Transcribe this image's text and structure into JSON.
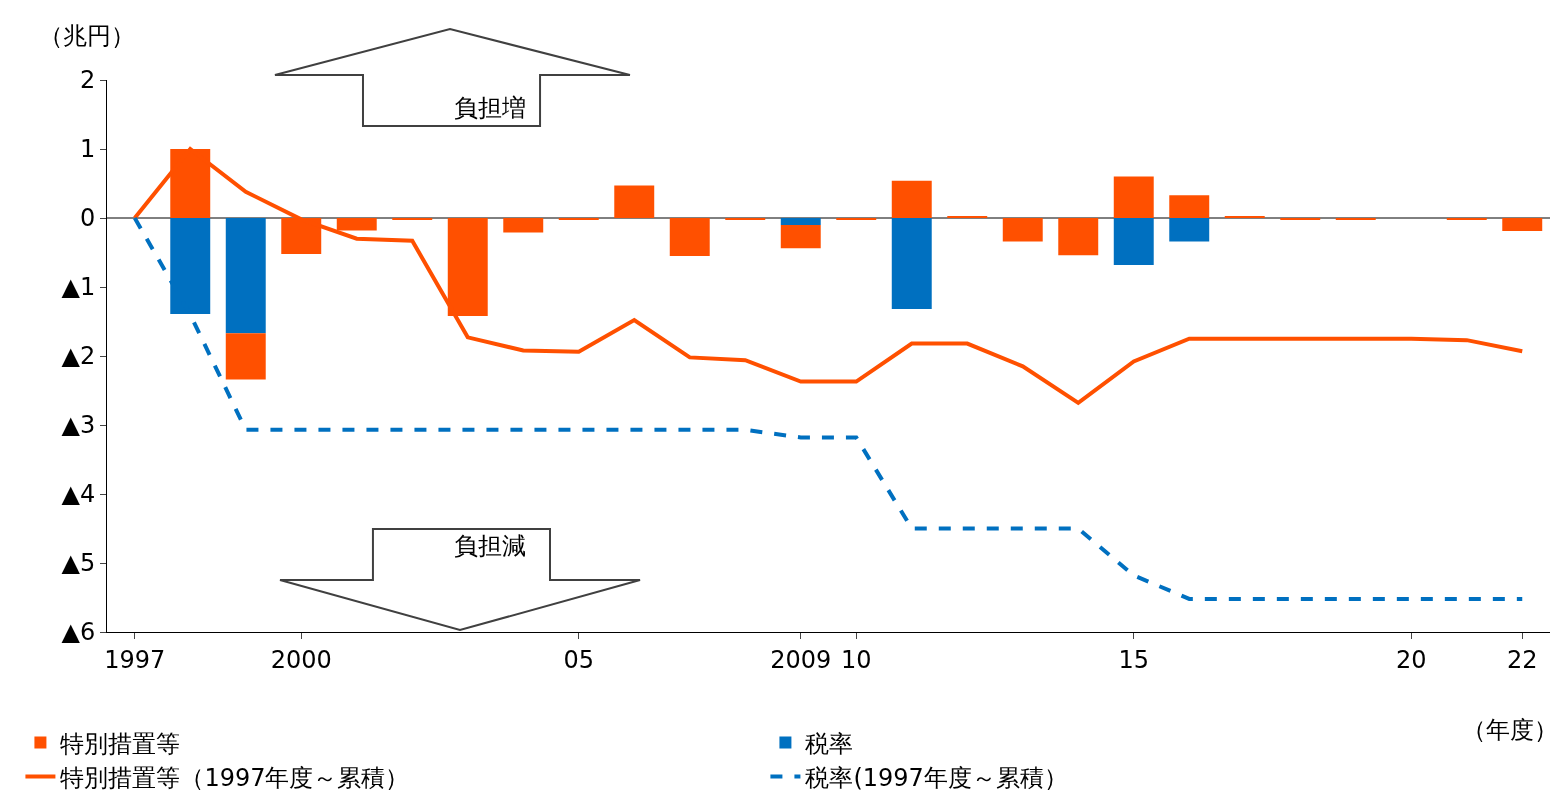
{
  "chart_data": {
    "type": "bar",
    "stacked": true,
    "categories": [
      "1997",
      null,
      null,
      "2000",
      null,
      null,
      null,
      null,
      "05",
      null,
      null,
      null,
      "2009",
      "10",
      null,
      null,
      null,
      null,
      "15",
      null,
      null,
      null,
      null,
      "20",
      null,
      "22"
    ],
    "series": [
      {
        "name": "税率",
        "color": "#0070c0",
        "values": [
          null,
          -1.39,
          -1.67,
          null,
          null,
          null,
          null,
          null,
          null,
          null,
          null,
          null,
          -0.1,
          null,
          -1.32,
          null,
          null,
          null,
          -0.68,
          -0.34,
          null,
          null,
          null,
          null,
          null,
          null
        ]
      },
      {
        "name": "特別措置等",
        "color": "#ff5000",
        "values": [
          null,
          1.0,
          -0.67,
          -0.52,
          -0.18,
          -0.03,
          -1.42,
          -0.21,
          -0.03,
          0.47,
          -0.55,
          -0.03,
          -0.34,
          -0.03,
          0.54,
          0.03,
          -0.34,
          -0.54,
          0.6,
          0.33,
          0.03,
          -0.03,
          -0.03,
          null,
          -0.03,
          -0.19
        ]
      },
      {
        "name": "特別措置等（1997年度～累積）",
        "type": "line",
        "color": "#ff5000",
        "line_style": "solid",
        "values": [
          0,
          1.0,
          0.38,
          -0.02,
          -0.3,
          -0.33,
          -1.73,
          -1.92,
          -1.94,
          -1.48,
          -2.02,
          -2.06,
          -2.37,
          -2.37,
          -1.82,
          -1.82,
          -2.15,
          -2.68,
          -2.08,
          -1.75,
          -1.75,
          -1.75,
          -1.75,
          -1.75,
          -1.77,
          -1.93
        ]
      },
      {
        "name": "税率(1997年度～累積）",
        "type": "line",
        "color": "#0070c0",
        "line_style": "dashed",
        "values": [
          0,
          -1.4,
          -3.07,
          -3.07,
          -3.07,
          -3.07,
          -3.07,
          -3.07,
          -3.07,
          -3.07,
          -3.07,
          -3.07,
          -3.18,
          -3.18,
          -4.5,
          -4.5,
          -4.5,
          -4.5,
          -5.18,
          -5.52,
          -5.52,
          -5.52,
          -5.52,
          -5.52,
          -5.52,
          -5.52
        ]
      }
    ],
    "ylabel": "（兆円）",
    "xlabel": "（年度）",
    "ylim": [
      -6,
      2
    ],
    "yticks": [
      2,
      1,
      0,
      {
        "value": -1,
        "label": "▲1"
      },
      {
        "value": -2,
        "label": "▲2"
      },
      {
        "value": -3,
        "label": "▲3"
      },
      {
        "value": -4,
        "label": "▲4"
      },
      {
        "value": -5,
        "label": "▲5"
      },
      {
        "value": -6,
        "label": "▲6"
      }
    ],
    "annotations": [
      "負担増",
      "負担減"
    ],
    "ref_lines": [
      {
        "axis": "y",
        "value": 0,
        "color": "#000000"
      }
    ],
    "grid": false,
    "legend": "bottom",
    "marker": "none"
  }
}
